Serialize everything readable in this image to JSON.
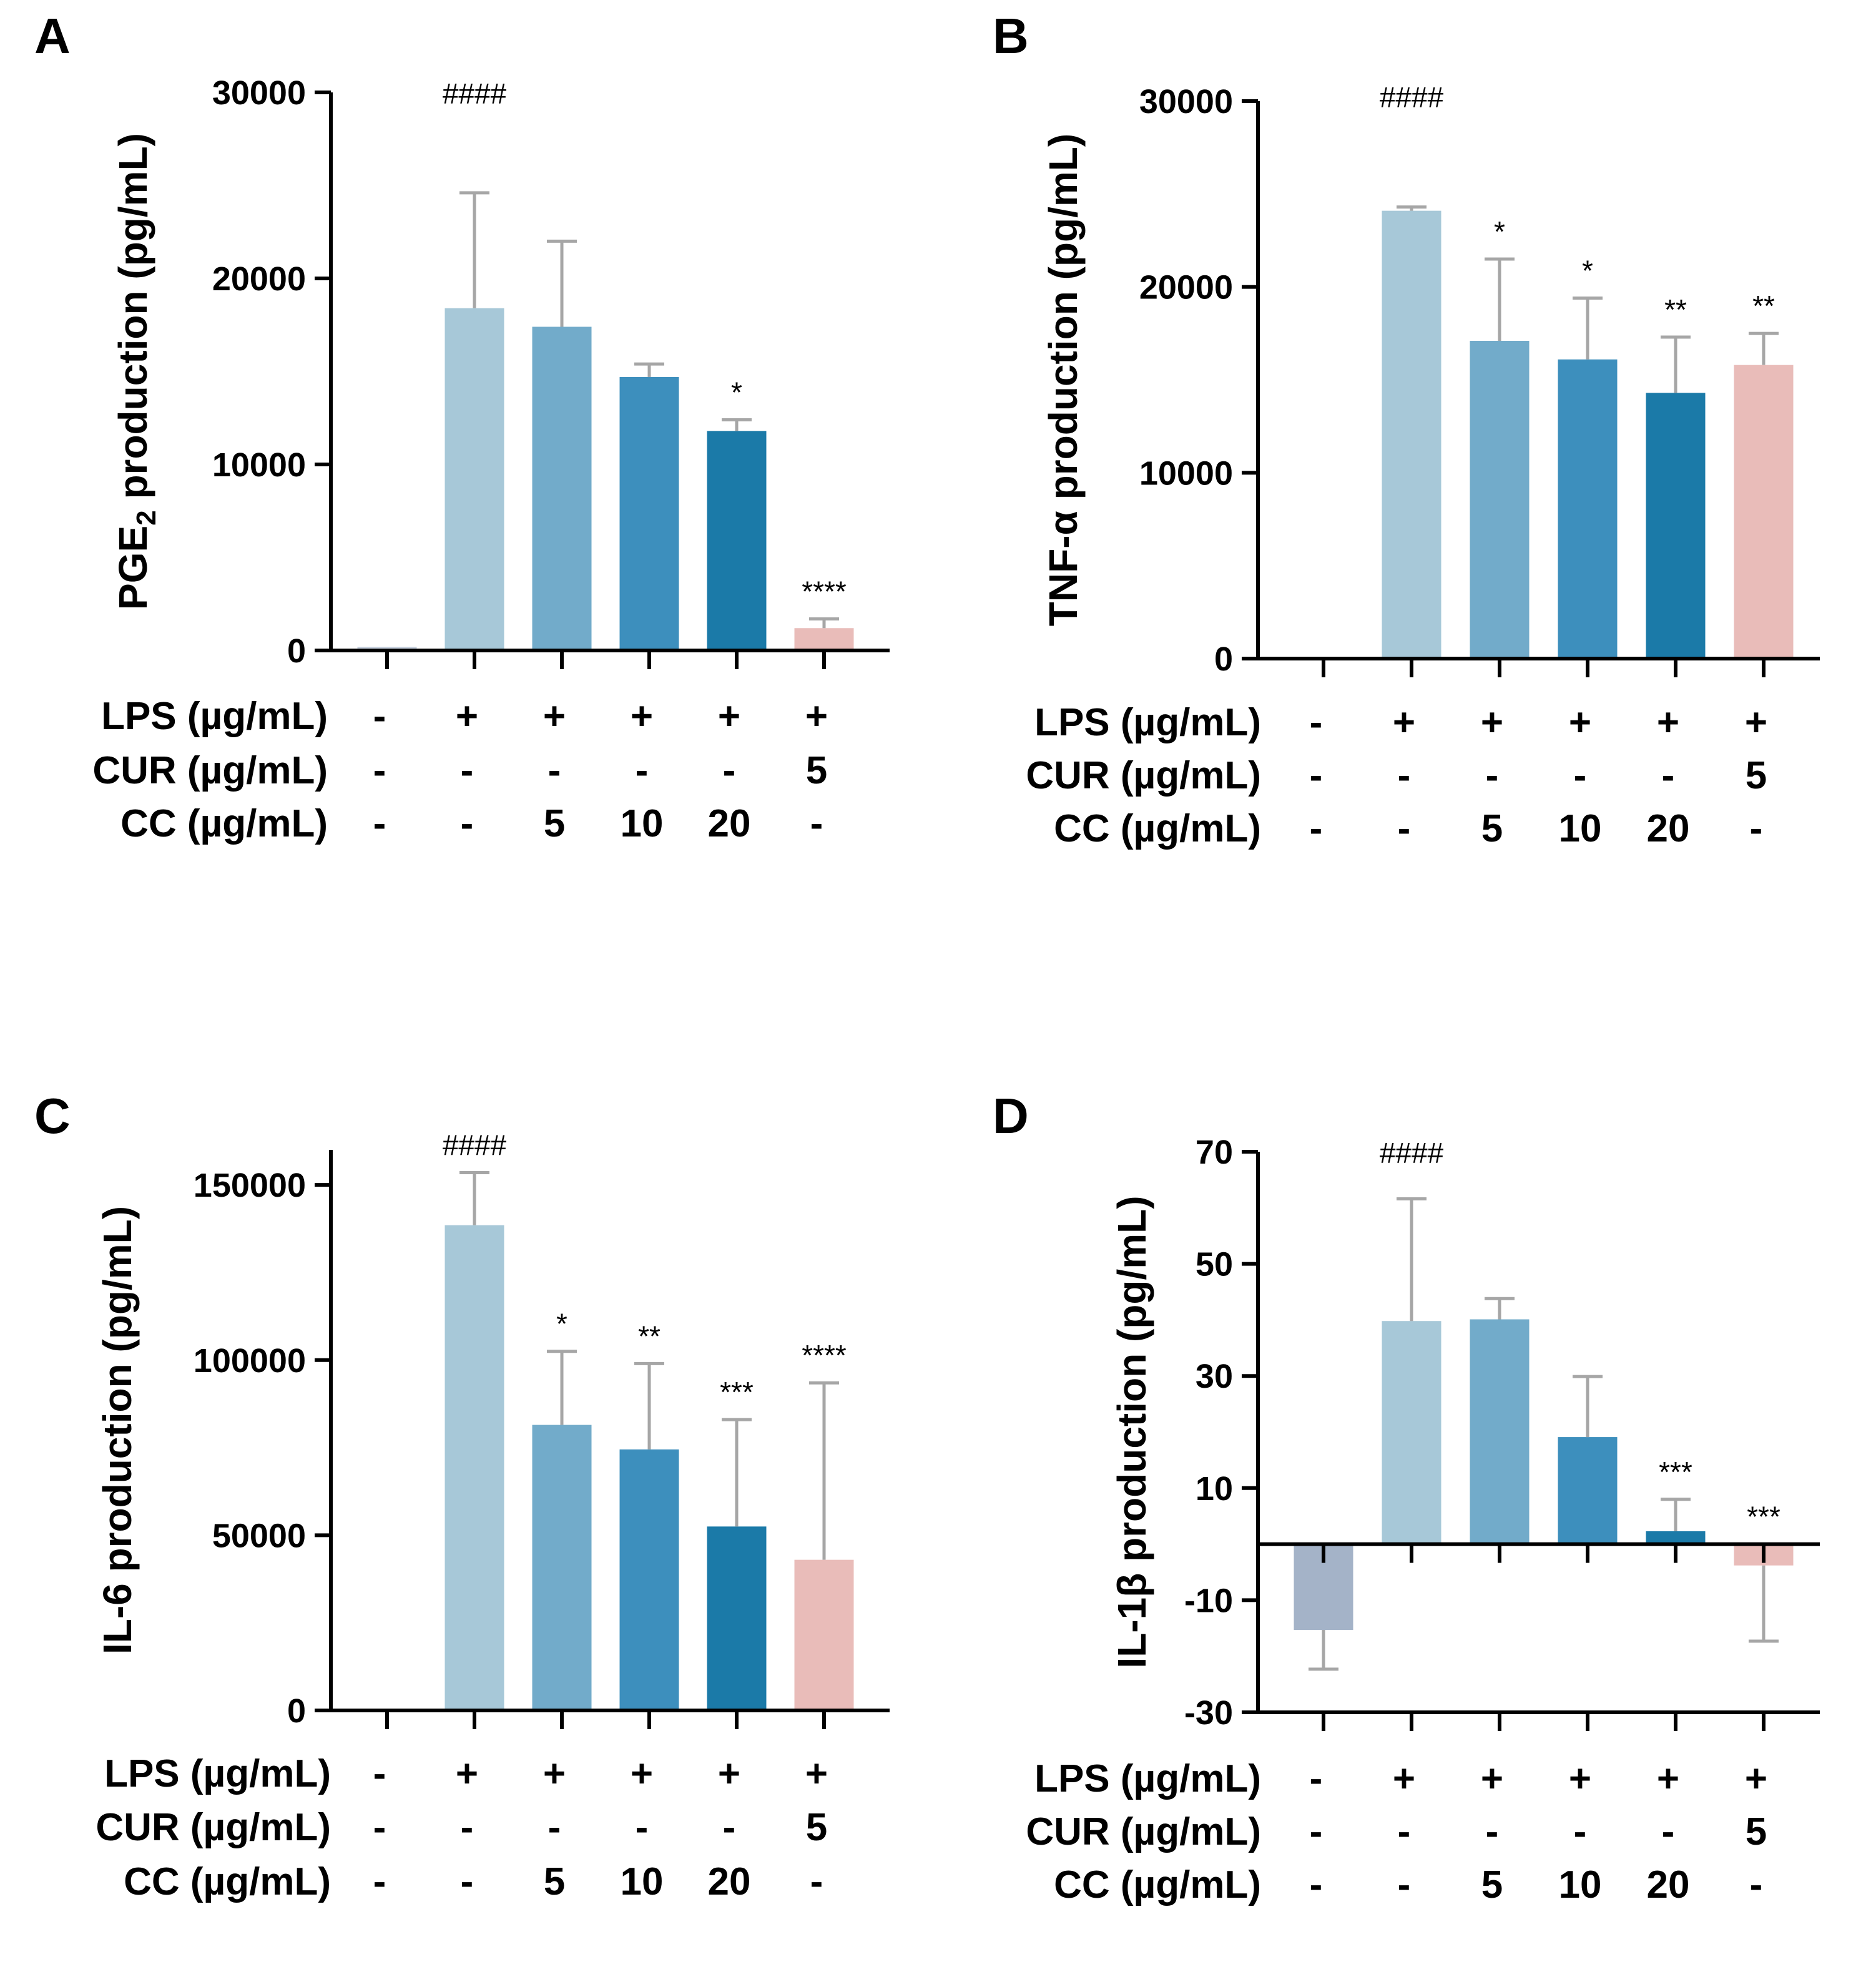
{
  "chart_data": [
    {
      "panel": "A",
      "type": "bar",
      "ylabel": "PGE2 production (pg/mL)",
      "ylabel_main": "PGE",
      "ylabel_sub": "2",
      "ylabel_rest": " production (pg/mL)",
      "ylim": [
        0,
        30000
      ],
      "yticks": [
        0,
        10000,
        20000,
        30000
      ],
      "ytick_labels": [
        "0",
        "10000",
        "20000",
        "30000"
      ],
      "values": [
        200,
        18400,
        17400,
        14700,
        11800,
        1200
      ],
      "errors": [
        0,
        6200,
        4600,
        700,
        600,
        500
      ],
      "significance": [
        "",
        "####",
        "",
        "",
        "*",
        "****"
      ],
      "colors": [
        "#c9d3e0",
        "#a7c8d8",
        "#72abca",
        "#3d8fbd",
        "#1b7aa8",
        "#e9bcb9"
      ],
      "conditions": [
        {
          "label": "LPS (µg/mL)",
          "values": [
            "-",
            "+",
            "+",
            "+",
            "+",
            "+"
          ]
        },
        {
          "label": "CUR (µg/mL)",
          "values": [
            "-",
            "-",
            "-",
            "-",
            "-",
            "5"
          ]
        },
        {
          "label": "CC (µg/mL)",
          "values": [
            "-",
            "-",
            "5",
            "10",
            "20",
            "-"
          ]
        }
      ]
    },
    {
      "panel": "B",
      "type": "bar",
      "ylabel": "TNF-α production (pg/mL)",
      "ylim": [
        0,
        30000
      ],
      "yticks": [
        0,
        10000,
        20000,
        30000
      ],
      "ytick_labels": [
        "0",
        "10000",
        "20000",
        "30000"
      ],
      "values": [
        100,
        24100,
        17100,
        16100,
        14300,
        15800
      ],
      "errors": [
        0,
        200,
        4400,
        3300,
        3000,
        1700
      ],
      "significance": [
        "",
        "####",
        "*",
        "*",
        "**",
        "**"
      ],
      "colors": [
        "#c9d3e0",
        "#a7c8d8",
        "#72abca",
        "#3d8fbd",
        "#1b7aa8",
        "#e9bcb9"
      ],
      "conditions": [
        {
          "label": "LPS (µg/mL)",
          "values": [
            "-",
            "+",
            "+",
            "+",
            "+",
            "+"
          ]
        },
        {
          "label": "CUR (µg/mL)",
          "values": [
            "-",
            "-",
            "-",
            "-",
            "-",
            "5"
          ]
        },
        {
          "label": "CC (µg/mL)",
          "values": [
            "-",
            "-",
            "5",
            "10",
            "20",
            "-"
          ]
        }
      ]
    },
    {
      "panel": "C",
      "type": "bar",
      "ylabel": "IL-6 production (pg/mL)",
      "ylim": [
        0,
        160000
      ],
      "yticks": [
        0,
        50000,
        100000,
        150000
      ],
      "ytick_labels": [
        "0",
        "50000",
        "100000",
        "150000"
      ],
      "values": [
        0,
        138500,
        81500,
        74500,
        52500,
        43000
      ],
      "errors": [
        0,
        15000,
        21000,
        24500,
        30500,
        50500
      ],
      "significance": [
        "",
        "####",
        "*",
        "**",
        "***",
        "****"
      ],
      "colors": [
        "#c9d3e0",
        "#a7c8d8",
        "#72abca",
        "#3d8fbd",
        "#1b7aa8",
        "#e9bcb9"
      ],
      "conditions": [
        {
          "label": "LPS (µg/mL)",
          "values": [
            "-",
            "+",
            "+",
            "+",
            "+",
            "+"
          ]
        },
        {
          "label": "CUR (µg/mL)",
          "values": [
            "-",
            "-",
            "-",
            "-",
            "-",
            "5"
          ]
        },
        {
          "label": "CC (µg/mL)",
          "values": [
            "-",
            "-",
            "5",
            "10",
            "20",
            "-"
          ]
        }
      ]
    },
    {
      "panel": "D",
      "type": "bar",
      "ylabel": "IL-1β production (pg/mL)",
      "ylim": [
        -30,
        70
      ],
      "yticks": [
        -30,
        -10,
        10,
        30,
        50,
        70
      ],
      "ytick_labels": [
        "-30",
        "-10",
        "10",
        "30",
        "50",
        "70"
      ],
      "values": [
        -15.3,
        39.8,
        40.1,
        19.1,
        2.3,
        -3.8
      ],
      "errors": [
        7,
        21.8,
        3.7,
        10.8,
        5.7,
        13.5
      ],
      "significance": [
        "",
        "####",
        "",
        "",
        "***",
        "***"
      ],
      "colors": [
        "#a4b3c8",
        "#a7c8d8",
        "#72abca",
        "#3d8fbd",
        "#1b7aa8",
        "#e9bcb9"
      ],
      "conditions": [
        {
          "label": "LPS (µg/mL)",
          "values": [
            "-",
            "+",
            "+",
            "+",
            "+",
            "+"
          ]
        },
        {
          "label": "CUR (µg/mL)",
          "values": [
            "-",
            "-",
            "-",
            "-",
            "-",
            "5"
          ]
        },
        {
          "label": "CC (µg/mL)",
          "values": [
            "-",
            "-",
            "5",
            "10",
            "20",
            "-"
          ]
        }
      ]
    }
  ]
}
